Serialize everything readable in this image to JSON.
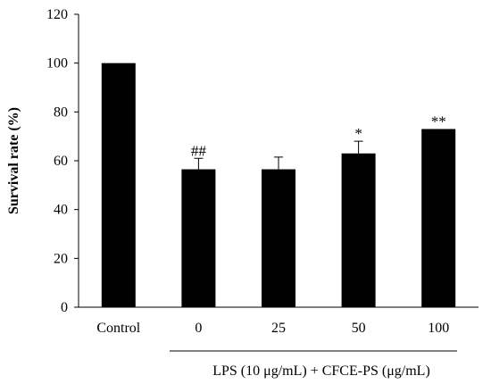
{
  "chart_data": {
    "type": "bar",
    "categories": [
      "Control",
      "0",
      "25",
      "50",
      "100"
    ],
    "values": [
      100,
      56.5,
      56.5,
      63,
      73
    ],
    "errors": [
      0,
      4.5,
      5,
      5,
      0
    ],
    "significance": [
      "",
      "##",
      "",
      "*",
      "**"
    ],
    "title": "",
    "xlabel": "",
    "ylabel": "Survival rate (%)",
    "ylim": [
      0,
      120
    ],
    "yticks": [
      0,
      20,
      40,
      60,
      80,
      100,
      120
    ],
    "group_label": "LPS (10 μg/mL) + CFCE-PS (μg/mL)",
    "bar_color": "#000000",
    "grid": false
  }
}
